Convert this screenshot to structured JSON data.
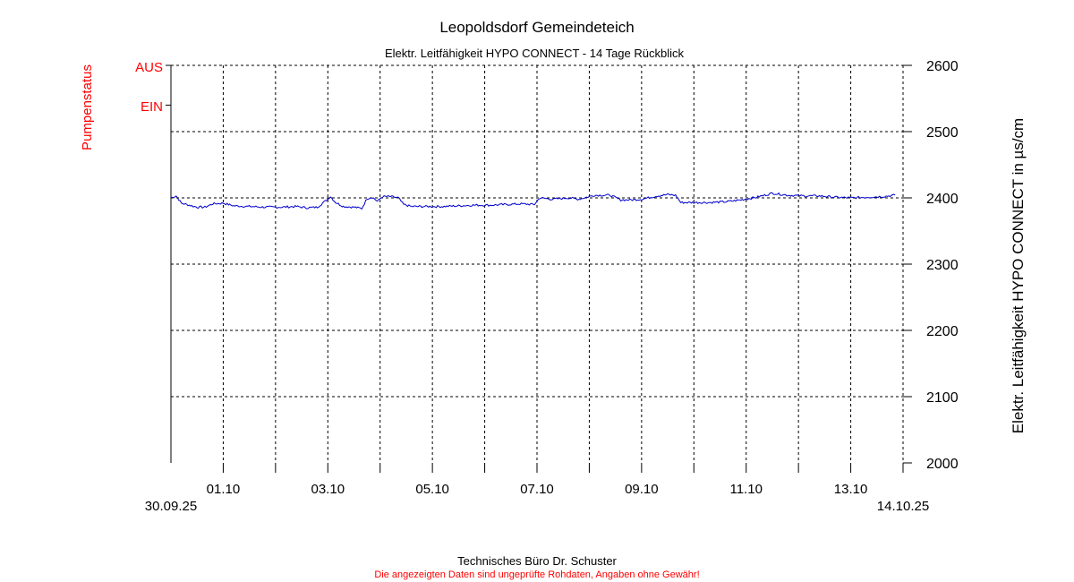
{
  "chart_data": {
    "type": "line",
    "title": "Leopoldsdorf Gemeindeteich",
    "subtitle": "Elektr. Leitfähigkeit HYPO CONNECT - 14 Tage Rückblick",
    "ylabel_right": "Elektr. Leitfähigkeit HYPO CONNECT in µs/cm",
    "ylabel_left": "Pumpenstatus",
    "status_labels": [
      "AUS",
      "EIN"
    ],
    "ylim": [
      2000,
      2600
    ],
    "yticks": [
      "2600",
      "2500",
      "2400",
      "2300",
      "2200",
      "2100",
      "2000"
    ],
    "x_range_days": [
      0,
      14
    ],
    "x_start_label": "30.09.25",
    "x_end_label": "14.10.25",
    "x_ticks": [
      {
        "day": 1,
        "label": "01.10"
      },
      {
        "day": 3,
        "label": "03.10"
      },
      {
        "day": 5,
        "label": "05.10"
      },
      {
        "day": 7,
        "label": "07.10"
      },
      {
        "day": 9,
        "label": "09.10"
      },
      {
        "day": 11,
        "label": "11.10"
      },
      {
        "day": 13,
        "label": "13.10"
      }
    ],
    "grid": true,
    "series": [
      {
        "color": "#0000cc",
        "points": [
          [
            0.0,
            2400
          ],
          [
            0.1,
            2403
          ],
          [
            0.2,
            2392
          ],
          [
            0.35,
            2389
          ],
          [
            0.5,
            2386
          ],
          [
            0.65,
            2386
          ],
          [
            0.8,
            2391
          ],
          [
            1.0,
            2392
          ],
          [
            1.2,
            2388
          ],
          [
            1.5,
            2387
          ],
          [
            1.8,
            2386
          ],
          [
            2.1,
            2386
          ],
          [
            2.4,
            2387
          ],
          [
            2.6,
            2385
          ],
          [
            2.8,
            2386
          ],
          [
            2.95,
            2395
          ],
          [
            3.05,
            2402
          ],
          [
            3.15,
            2393
          ],
          [
            3.3,
            2387
          ],
          [
            3.5,
            2386
          ],
          [
            3.65,
            2384
          ],
          [
            3.75,
            2399
          ],
          [
            3.85,
            2401
          ],
          [
            3.95,
            2395
          ],
          [
            4.05,
            2402
          ],
          [
            4.2,
            2402
          ],
          [
            4.35,
            2400
          ],
          [
            4.45,
            2390
          ],
          [
            4.6,
            2387
          ],
          [
            4.9,
            2387
          ],
          [
            5.2,
            2387
          ],
          [
            5.5,
            2388
          ],
          [
            5.8,
            2389
          ],
          [
            6.1,
            2389
          ],
          [
            6.4,
            2390
          ],
          [
            6.7,
            2391
          ],
          [
            6.95,
            2390
          ],
          [
            7.05,
            2400
          ],
          [
            7.3,
            2398
          ],
          [
            7.6,
            2400
          ],
          [
            7.8,
            2398
          ],
          [
            8.1,
            2404
          ],
          [
            8.4,
            2404
          ],
          [
            8.6,
            2397
          ],
          [
            8.8,
            2397
          ],
          [
            9.0,
            2398
          ],
          [
            9.3,
            2403
          ],
          [
            9.5,
            2405
          ],
          [
            9.65,
            2404
          ],
          [
            9.75,
            2393
          ],
          [
            10.0,
            2393
          ],
          [
            10.3,
            2393
          ],
          [
            10.6,
            2394
          ],
          [
            10.9,
            2397
          ],
          [
            11.2,
            2401
          ],
          [
            11.5,
            2407
          ],
          [
            11.8,
            2404
          ],
          [
            12.1,
            2403
          ],
          [
            12.4,
            2403
          ],
          [
            12.7,
            2401
          ],
          [
            13.0,
            2400
          ],
          [
            13.3,
            2401
          ],
          [
            13.6,
            2402
          ],
          [
            13.85,
            2404
          ]
        ]
      }
    ]
  },
  "footer": {
    "company": "Technisches Büro Dr. Schuster",
    "disclaimer": "Die angezeigten Daten sind ungeprüfte Rohdaten, Angaben ohne Gewähr!"
  },
  "colors": {
    "series": "#0000cc",
    "status": "#ff0000",
    "disclaimer": "#ff0000",
    "text": "#000000",
    "grid": "#000000"
  }
}
